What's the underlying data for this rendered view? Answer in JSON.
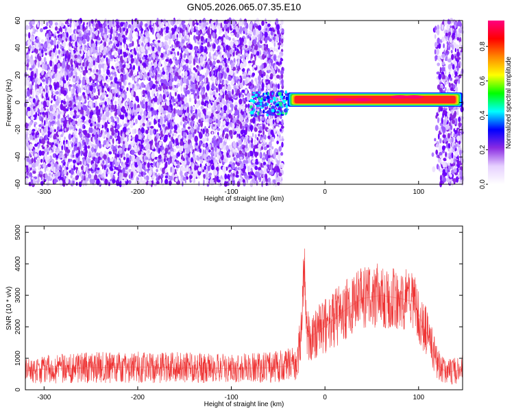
{
  "title": "GN05.2026.065.07.35.E10",
  "chart_data": [
    {
      "type": "heatmap",
      "xlabel": "Height of straight line (km)",
      "ylabel": "Frequency (Hz)",
      "xlim": [
        -320,
        147
      ],
      "ylim": [
        -60,
        60
      ],
      "x_ticks": [
        -300,
        -200,
        -100,
        0,
        100
      ],
      "y_ticks": [
        -60,
        -40,
        -20,
        0,
        20,
        40,
        60
      ],
      "colorbar": {
        "label": "Normalized spectral amplitude",
        "range": [
          0,
          0.95
        ],
        "ticks": [
          0.0,
          0.2,
          0.4,
          0.6,
          0.8
        ],
        "colormap": [
          "#ffffff",
          "#e6d0ff",
          "#8a2be2",
          "#0000ff",
          "#00ffff",
          "#00ff00",
          "#ffff00",
          "#ff8800",
          "#ff0000",
          "#ff0080"
        ]
      },
      "regions": [
        {
          "x_range": [
            -320,
            -45
          ],
          "freq_range": [
            -60,
            60
          ],
          "amplitude": "low (0.0-0.2), broadband noise"
        },
        {
          "x_range": [
            -80,
            -40
          ],
          "freq_range": [
            -10,
            8
          ],
          "amplitude": "0.2-0.5"
        },
        {
          "x_range": [
            -40,
            147
          ],
          "freq_range": [
            -2,
            6
          ],
          "center_freq": 2,
          "amplitude": "0.6-0.95, narrow-band line"
        },
        {
          "x_range": [
            115,
            147
          ],
          "freq_range": [
            -60,
            60
          ],
          "amplitude": "low (0.0-0.2), broadband noise"
        }
      ],
      "grid": false
    },
    {
      "type": "line",
      "xlabel": "Height of straight line (km)",
      "ylabel": "SNR (10 * v/v)",
      "xlim": [
        -320,
        147
      ],
      "ylim": [
        0,
        5200
      ],
      "x_ticks": [
        -300,
        -200,
        -100,
        0,
        100
      ],
      "y_ticks": [
        0,
        1000,
        2000,
        3000,
        4000,
        5000
      ],
      "series": [
        {
          "color": "#ee3333",
          "x": [
            -320,
            -300,
            -250,
            -200,
            -150,
            -100,
            -60,
            -40,
            -30,
            -25,
            -22,
            -20,
            -15,
            -10,
            0,
            20,
            40,
            60,
            80,
            95,
            100,
            110,
            120,
            130,
            147
          ],
          "y": [
            600,
            650,
            700,
            720,
            700,
            680,
            700,
            750,
            900,
            1800,
            4200,
            1800,
            1700,
            1800,
            2000,
            2500,
            2900,
            3000,
            2900,
            2800,
            2400,
            1700,
            800,
            550,
            650
          ],
          "spread": [
            400,
            450,
            500,
            500,
            500,
            450,
            500,
            550,
            600,
            900,
            900,
            800,
            800,
            800,
            900,
            950,
            1000,
            1050,
            1000,
            950,
            900,
            800,
            500,
            400,
            450
          ]
        }
      ],
      "grid": false
    }
  ]
}
